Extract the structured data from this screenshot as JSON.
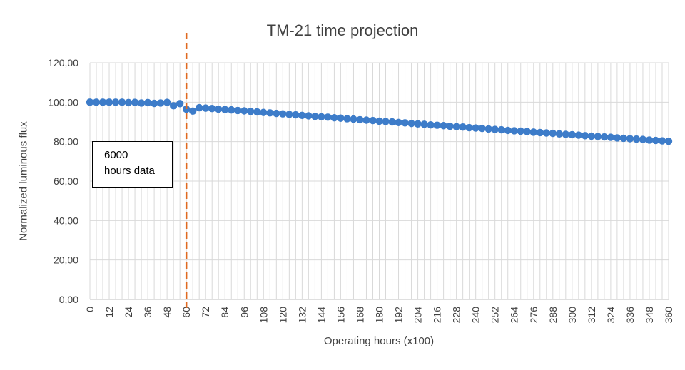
{
  "chart_data": {
    "type": "scatter",
    "title": "TM-21 time projection",
    "xlabel": "Operating hours (x100)",
    "ylabel": "Normalized luminous flux",
    "xlim": [
      0,
      360
    ],
    "ylim": [
      0,
      120
    ],
    "y_ticks": [
      "0,00",
      "20,00",
      "40,00",
      "60,00",
      "80,00",
      "100,00",
      "120,00"
    ],
    "y_tick_values": [
      0,
      20,
      40,
      60,
      80,
      100,
      120
    ],
    "x_ticks": [
      "0",
      "12",
      "24",
      "36",
      "48",
      "60",
      "72",
      "84",
      "96",
      "108",
      "120",
      "132",
      "144",
      "156",
      "168",
      "180",
      "192",
      "204",
      "216",
      "228",
      "240",
      "252",
      "264",
      "276",
      "288",
      "300",
      "312",
      "324",
      "336",
      "348",
      "360"
    ],
    "x_minor_step": 4,
    "grid": true,
    "series_color": "#3d7cc9",
    "marker_line_color": "#e06a20",
    "vertical_marker_x": 60,
    "annotation": "6000\nhours data",
    "annotation_line1": "6000",
    "annotation_line2": "hours data",
    "points": {
      "x_step": 4,
      "y": [
        100.0,
        100.0,
        100.0,
        100.0,
        100.0,
        100.0,
        99.8,
        99.9,
        99.6,
        99.8,
        99.4,
        99.6,
        99.9,
        98.2,
        99.3,
        96.5,
        95.5,
        97.2,
        97.0,
        96.8,
        96.5,
        96.3,
        96.1,
        95.8,
        95.6,
        95.3,
        95.1,
        94.8,
        94.6,
        94.3,
        94.1,
        93.8,
        93.6,
        93.3,
        93.1,
        92.8,
        92.6,
        92.4,
        92.1,
        91.9,
        91.6,
        91.4,
        91.1,
        90.9,
        90.7,
        90.4,
        90.2,
        90.0,
        89.7,
        89.5,
        89.2,
        89.0,
        88.8,
        88.5,
        88.3,
        88.1,
        87.8,
        87.6,
        87.4,
        87.1,
        86.9,
        86.7,
        86.4,
        86.2,
        86.0,
        85.7,
        85.5,
        85.3,
        85.1,
        84.8,
        84.6,
        84.4,
        84.2,
        83.9,
        83.7,
        83.5,
        83.3,
        83.0,
        82.8,
        82.6,
        82.4,
        82.2,
        81.9,
        81.7,
        81.5,
        81.3,
        81.1,
        80.8,
        80.6,
        80.4,
        80.2
      ]
    }
  }
}
